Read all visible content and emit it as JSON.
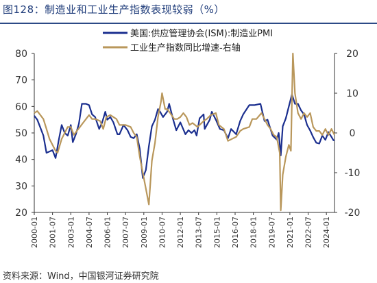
{
  "figure": {
    "title": "图128：制造业和工业生产指数表现较弱（%）",
    "source": "资料来源：Wind，中国银河证券研究院"
  },
  "chart_data": {
    "type": "line",
    "legend_position": "top-center",
    "grid": false,
    "x_tick_labels": [
      "2000-01",
      "2001-07",
      "2003-01",
      "2004-07",
      "2006-01",
      "2007-07",
      "2009-01",
      "2010-07",
      "2012-01",
      "2013-07",
      "2015-01",
      "2016-07",
      "2018-01",
      "2019-07",
      "2021-01",
      "2022-07",
      "2024-01"
    ],
    "x_range": [
      "2000-01",
      "2024-09"
    ],
    "y_left": {
      "ticks": [
        20,
        30,
        40,
        50,
        60,
        70,
        80
      ],
      "range": [
        20,
        80
      ]
    },
    "y_right": {
      "ticks": [
        -20,
        -10,
        0,
        10,
        20
      ],
      "range": [
        -20,
        20
      ]
    },
    "series": [
      {
        "name": "美国:供应管理协会(ISM):制造业PMI",
        "axis": "left",
        "color": "#1b2f8f",
        "points": [
          [
            "2000-01",
            56.5
          ],
          [
            "2000-04",
            55
          ],
          [
            "2000-07",
            52
          ],
          [
            "2000-10",
            49
          ],
          [
            "2001-01",
            42.5
          ],
          [
            "2001-04",
            43
          ],
          [
            "2001-07",
            43.5
          ],
          [
            "2001-10",
            40.5
          ],
          [
            "2002-01",
            47
          ],
          [
            "2002-04",
            53
          ],
          [
            "2002-07",
            50
          ],
          [
            "2002-10",
            49
          ],
          [
            "2003-01",
            53
          ],
          [
            "2003-03",
            46.5
          ],
          [
            "2003-06",
            49.5
          ],
          [
            "2003-09",
            53.5
          ],
          [
            "2003-12",
            61
          ],
          [
            "2004-04",
            61
          ],
          [
            "2004-07",
            60.5
          ],
          [
            "2004-10",
            57
          ],
          [
            "2005-01",
            56
          ],
          [
            "2005-05",
            51.5
          ],
          [
            "2005-08",
            54
          ],
          [
            "2005-11",
            58
          ],
          [
            "2006-01",
            55
          ],
          [
            "2006-04",
            56
          ],
          [
            "2006-07",
            54
          ],
          [
            "2006-11",
            49.5
          ],
          [
            "2007-01",
            49.5
          ],
          [
            "2007-05",
            53
          ],
          [
            "2007-09",
            51
          ],
          [
            "2007-12",
            48.5
          ],
          [
            "2008-03",
            48
          ],
          [
            "2008-06",
            49.5
          ],
          [
            "2008-09",
            44
          ],
          [
            "2008-12",
            33
          ],
          [
            "2009-03",
            36
          ],
          [
            "2009-06",
            45
          ],
          [
            "2009-09",
            52.5
          ],
          [
            "2009-12",
            55
          ],
          [
            "2010-03",
            59
          ],
          [
            "2010-05",
            58
          ],
          [
            "2010-08",
            56
          ],
          [
            "2010-12",
            58
          ],
          [
            "2011-02",
            61
          ],
          [
            "2011-06",
            55
          ],
          [
            "2011-09",
            51
          ],
          [
            "2012-01",
            54
          ],
          [
            "2012-06",
            49.5
          ],
          [
            "2012-09",
            51
          ],
          [
            "2012-12",
            50
          ],
          [
            "2013-03",
            51
          ],
          [
            "2013-05",
            49
          ],
          [
            "2013-08",
            55.5
          ],
          [
            "2013-12",
            57
          ],
          [
            "2014-01",
            51.5
          ],
          [
            "2014-06",
            55
          ],
          [
            "2014-08",
            58
          ],
          [
            "2014-12",
            55
          ],
          [
            "2015-04",
            51.5
          ],
          [
            "2015-08",
            51
          ],
          [
            "2015-12",
            48
          ],
          [
            "2016-03",
            51.5
          ],
          [
            "2016-08",
            49.5
          ],
          [
            "2016-12",
            54.5
          ],
          [
            "2017-03",
            57
          ],
          [
            "2017-09",
            60.5
          ],
          [
            "2018-02",
            60.5
          ],
          [
            "2018-08",
            61
          ],
          [
            "2018-12",
            54.5
          ],
          [
            "2019-03",
            55
          ],
          [
            "2019-08",
            49
          ],
          [
            "2019-12",
            47.5
          ],
          [
            "2020-02",
            50
          ],
          [
            "2020-04",
            41.5
          ],
          [
            "2020-06",
            52.5
          ],
          [
            "2020-09",
            55.5
          ],
          [
            "2020-12",
            60
          ],
          [
            "2021-03",
            64.5
          ],
          [
            "2021-06",
            61
          ],
          [
            "2021-09",
            61
          ],
          [
            "2021-12",
            58.5
          ],
          [
            "2022-03",
            57
          ],
          [
            "2022-06",
            53
          ],
          [
            "2022-09",
            50.9
          ],
          [
            "2022-12",
            48.4
          ],
          [
            "2023-03",
            46.3
          ],
          [
            "2023-06",
            46
          ],
          [
            "2023-09",
            49
          ],
          [
            "2023-12",
            47.4
          ],
          [
            "2024-03",
            50.3
          ],
          [
            "2024-06",
            48.5
          ],
          [
            "2024-08",
            47.2
          ],
          [
            "2024-09",
            47.2
          ]
        ]
      },
      {
        "name": "工业生产指数同比增速-右轴",
        "axis": "right",
        "color": "#b9975b",
        "points": [
          [
            "2000-01",
            5
          ],
          [
            "2000-04",
            5.5
          ],
          [
            "2000-07",
            4.5
          ],
          [
            "2000-10",
            3.5
          ],
          [
            "2001-01",
            1
          ],
          [
            "2001-04",
            -1.5
          ],
          [
            "2001-07",
            -3
          ],
          [
            "2001-10",
            -4.5
          ],
          [
            "2001-12",
            -5
          ],
          [
            "2002-04",
            -1.5
          ],
          [
            "2002-07",
            0
          ],
          [
            "2002-10",
            1.5
          ],
          [
            "2003-01",
            1.5
          ],
          [
            "2003-04",
            -0.5
          ],
          [
            "2003-07",
            0.5
          ],
          [
            "2003-10",
            1.5
          ],
          [
            "2004-01",
            2.5
          ],
          [
            "2004-04",
            3.5
          ],
          [
            "2004-07",
            4.5
          ],
          [
            "2004-10",
            3.5
          ],
          [
            "2005-01",
            3.5
          ],
          [
            "2005-06",
            3
          ],
          [
            "2005-09",
            1
          ],
          [
            "2005-12",
            4
          ],
          [
            "2006-04",
            4.5
          ],
          [
            "2006-07",
            4
          ],
          [
            "2006-10",
            3.5
          ],
          [
            "2007-01",
            2
          ],
          [
            "2007-07",
            2
          ],
          [
            "2007-12",
            1.5
          ],
          [
            "2008-03",
            0
          ],
          [
            "2008-06",
            -1
          ],
          [
            "2008-09",
            -6
          ],
          [
            "2008-12",
            -10
          ],
          [
            "2009-03",
            -14
          ],
          [
            "2009-06",
            -18
          ],
          [
            "2009-09",
            -7
          ],
          [
            "2009-12",
            -2.5
          ],
          [
            "2010-03",
            4
          ],
          [
            "2010-06",
            8
          ],
          [
            "2010-07",
            10
          ],
          [
            "2010-10",
            6
          ],
          [
            "2010-12",
            6
          ],
          [
            "2011-03",
            5
          ],
          [
            "2011-07",
            3.5
          ],
          [
            "2011-10",
            3.5
          ],
          [
            "2012-01",
            4
          ],
          [
            "2012-04",
            5
          ],
          [
            "2012-07",
            4
          ],
          [
            "2012-10",
            2
          ],
          [
            "2013-01",
            2.5
          ],
          [
            "2013-06",
            1.5
          ],
          [
            "2013-12",
            3
          ],
          [
            "2014-03",
            3.5
          ],
          [
            "2014-07",
            4.5
          ],
          [
            "2014-12",
            5
          ],
          [
            "2015-03",
            2
          ],
          [
            "2015-08",
            1
          ],
          [
            "2015-12",
            -2
          ],
          [
            "2016-04",
            -1.5
          ],
          [
            "2016-08",
            -1
          ],
          [
            "2016-12",
            0.5
          ],
          [
            "2017-03",
            1
          ],
          [
            "2017-09",
            1.5
          ],
          [
            "2017-12",
            3.5
          ],
          [
            "2018-04",
            3.5
          ],
          [
            "2018-09",
            5
          ],
          [
            "2018-12",
            3.5
          ],
          [
            "2019-03",
            2
          ],
          [
            "2019-06",
            1
          ],
          [
            "2019-09",
            -0.5
          ],
          [
            "2019-12",
            -1
          ],
          [
            "2020-03",
            -5
          ],
          [
            "2020-04",
            -19.5
          ],
          [
            "2020-06",
            -10.5
          ],
          [
            "2020-09",
            -6
          ],
          [
            "2020-12",
            -3
          ],
          [
            "2021-02",
            -4.5
          ],
          [
            "2021-04",
            20
          ],
          [
            "2021-06",
            10
          ],
          [
            "2021-09",
            5
          ],
          [
            "2021-12",
            3.5
          ],
          [
            "2022-03",
            5
          ],
          [
            "2022-06",
            4
          ],
          [
            "2022-09",
            5
          ],
          [
            "2022-12",
            1.5
          ],
          [
            "2023-03",
            0.5
          ],
          [
            "2023-06",
            0.5
          ],
          [
            "2023-09",
            -0.5
          ],
          [
            "2023-12",
            1
          ],
          [
            "2024-03",
            -0.5
          ],
          [
            "2024-06",
            1
          ],
          [
            "2024-09",
            -0.5
          ]
        ]
      }
    ]
  }
}
